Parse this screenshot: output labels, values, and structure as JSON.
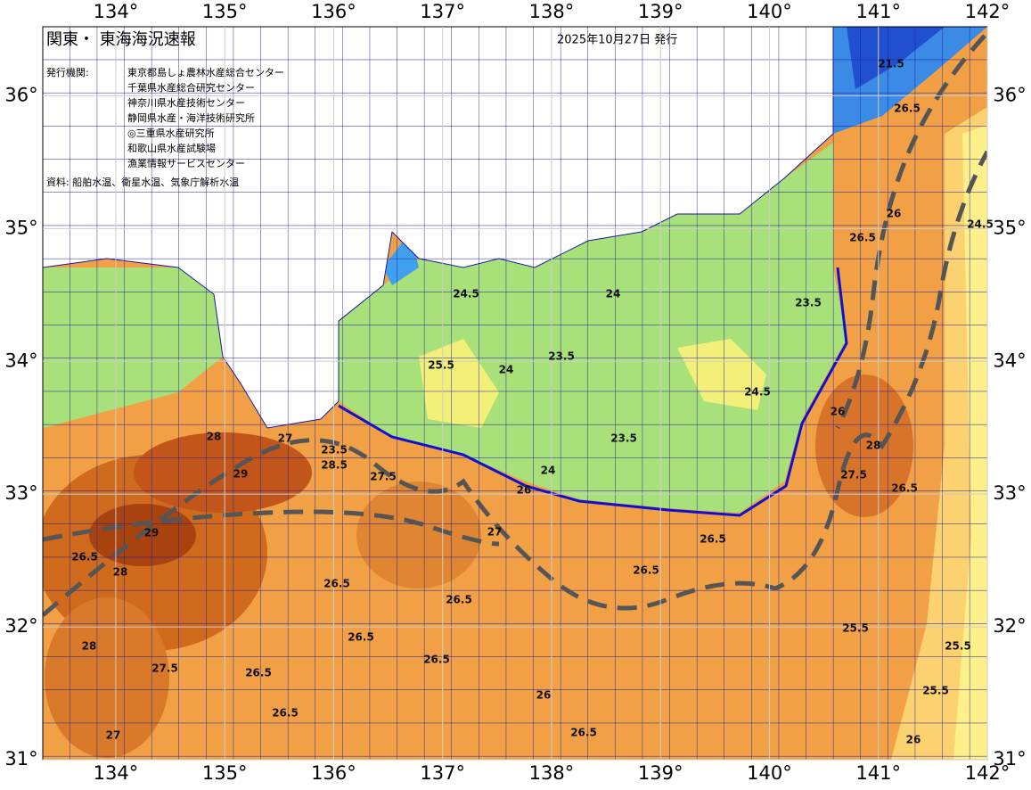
{
  "map": {
    "title": "関東・ 東海海況速報",
    "issued": "2025年10月27日 発行",
    "agency_label": "発行機関:",
    "agencies": [
      "東京都島しょ農林水産総合センター",
      "千葉県水産総合研究センター",
      "神奈川県水産技術センター",
      "静岡県水産・海洋技術研究所",
      "◎三重県水産研究所",
      "和歌山県水産試験場",
      "漁業情報サービスセンター"
    ],
    "source": "資料: 船舶水温、衛星水温、気象庁解析水温",
    "xlim": [
      133.33,
      142
    ],
    "ylim": [
      31,
      36.52
    ],
    "xticks": [
      {
        "value": 134,
        "label": "134°"
      },
      {
        "value": 135,
        "label": "135°"
      },
      {
        "value": 136,
        "label": "136°"
      },
      {
        "value": 137,
        "label": "137°"
      },
      {
        "value": 138,
        "label": "138°"
      },
      {
        "value": 139,
        "label": "139°"
      },
      {
        "value": 140,
        "label": "140°"
      },
      {
        "value": 141,
        "label": "141°"
      },
      {
        "value": 142,
        "label": "142°"
      }
    ],
    "yticks": [
      {
        "value": 31,
        "label": "31°"
      },
      {
        "value": 32,
        "label": "32°"
      },
      {
        "value": 33,
        "label": "33°"
      },
      {
        "value": 34,
        "label": "34°"
      },
      {
        "value": 35,
        "label": "35°"
      },
      {
        "value": 36,
        "label": "36°"
      }
    ],
    "contour_labels": [
      21.5,
      26.5,
      26,
      26.5,
      23.5,
      24.5,
      24,
      24,
      23.5,
      24.5,
      25.5,
      23.5,
      24,
      26,
      23.5,
      28,
      29,
      28.5,
      27.5,
      27,
      29,
      28,
      26.5,
      28,
      27.5,
      26.5,
      26.5,
      26.5,
      27,
      26.5,
      26.5,
      26,
      28,
      27.5,
      26.5,
      25.5,
      25.5,
      25.5,
      26,
      27,
      26.5,
      26,
      26.5,
      26.5,
      26.5,
      24.5
    ]
  }
}
